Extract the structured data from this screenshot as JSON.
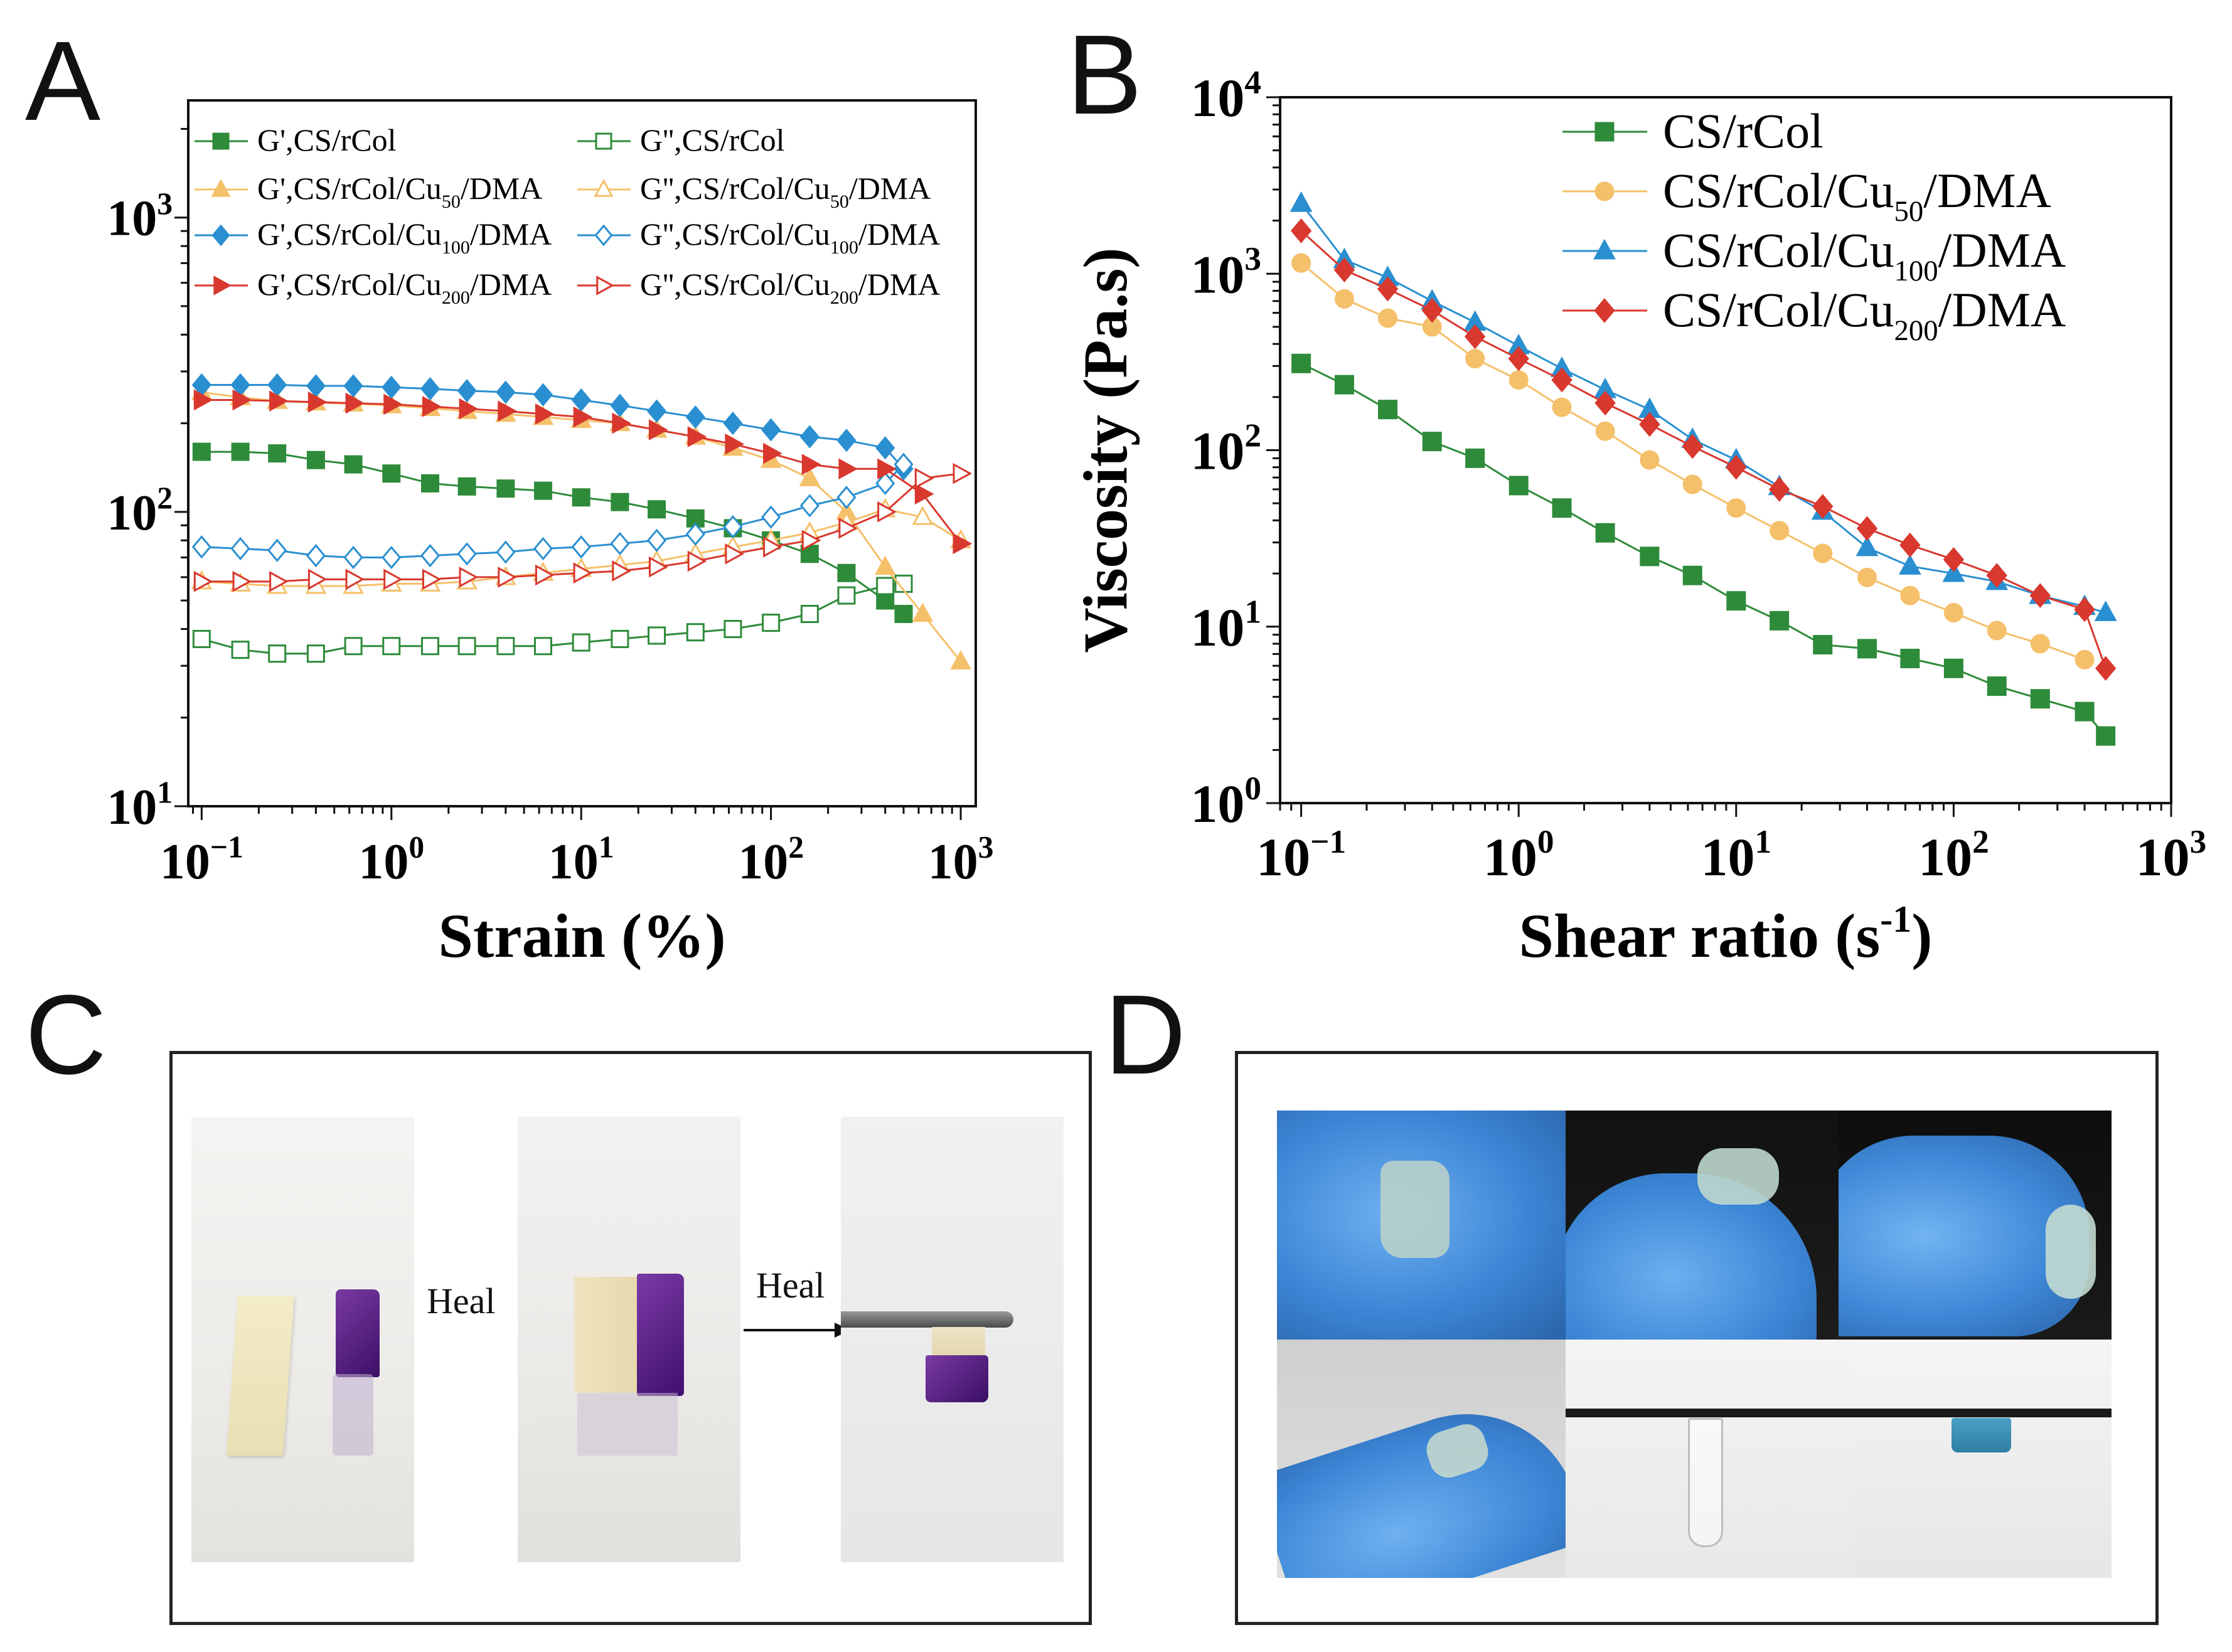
{
  "panels": {
    "A": {
      "letter": "A"
    },
    "B": {
      "letter": "B"
    },
    "C": {
      "letter": "C",
      "heal_label_1": "Heal",
      "heal_label_2": "Heal"
    },
    "D": {
      "letter": "D"
    }
  },
  "colors": {
    "green": "#2e8b3a",
    "yellow": "#f5c06a",
    "blue": "#2a8fd0",
    "red": "#d8382e"
  },
  "chart_data": [
    {
      "id": "A",
      "type": "line",
      "xlabel": "Strain (%)",
      "ylabel": "",
      "xscale": "log",
      "yscale": "log",
      "xlim": [
        0.085,
        1200
      ],
      "ylim": [
        10,
        2500
      ],
      "xticks": [
        {
          "base": "10",
          "exp": "−1"
        },
        {
          "base": "10",
          "exp": "0"
        },
        {
          "base": "10",
          "exp": "1"
        },
        {
          "base": "10",
          "exp": "2"
        },
        {
          "base": "10",
          "exp": "3"
        }
      ],
      "yticks": [
        {
          "base": "10",
          "exp": "1"
        },
        {
          "base": "10",
          "exp": "2"
        },
        {
          "base": "10",
          "exp": "3"
        }
      ],
      "legend_position": "top",
      "series": [
        {
          "name": "G',CS/rCol",
          "color": "green",
          "marker": "square",
          "filled": true,
          "x": [
            0.1,
            0.16,
            0.25,
            0.4,
            0.63,
            1,
            1.6,
            2.5,
            4,
            6.3,
            10,
            16,
            25,
            40,
            63,
            100,
            160,
            250,
            400,
            500
          ],
          "y": [
            160,
            160,
            158,
            150,
            145,
            135,
            125,
            122,
            120,
            118,
            112,
            108,
            102,
            95,
            88,
            80,
            72,
            62,
            50,
            45
          ]
        },
        {
          "name": "G'',CS/rCol",
          "color": "green",
          "marker": "square",
          "filled": false,
          "x": [
            0.1,
            0.16,
            0.25,
            0.4,
            0.63,
            1,
            1.6,
            2.5,
            4,
            6.3,
            10,
            16,
            25,
            40,
            63,
            100,
            160,
            250,
            400,
            500
          ],
          "y": [
            37,
            34,
            33,
            33,
            35,
            35,
            35,
            35,
            35,
            35,
            36,
            37,
            38,
            39,
            40,
            42,
            45,
            52,
            56,
            57
          ]
        },
        {
          "name": "G',CS/rCol/Cu50/DMA",
          "label_parts": [
            "G',CS/rCol/Cu",
            "50",
            "/DMA"
          ],
          "color": "yellow",
          "marker": "triangle-up",
          "filled": true,
          "x": [
            0.1,
            0.16,
            0.25,
            0.4,
            0.63,
            1,
            1.6,
            2.5,
            4,
            6.3,
            10,
            16,
            25,
            40,
            63,
            100,
            160,
            250,
            400,
            630,
            1000
          ],
          "y": [
            255,
            245,
            238,
            235,
            233,
            230,
            225,
            220,
            215,
            210,
            205,
            200,
            190,
            180,
            165,
            150,
            130,
            100,
            65,
            45,
            31
          ]
        },
        {
          "name": "G'',CS/rCol/Cu50/DMA",
          "label_parts": [
            "G'',CS/rCol/Cu",
            "50",
            "/DMA"
          ],
          "color": "yellow",
          "marker": "triangle-up",
          "filled": false,
          "x": [
            0.1,
            0.16,
            0.25,
            0.4,
            0.63,
            1,
            1.6,
            2.5,
            4,
            6.3,
            10,
            16,
            25,
            40,
            63,
            100,
            160,
            250,
            400,
            630,
            1000
          ],
          "y": [
            58,
            57,
            56,
            56,
            56,
            57,
            57,
            58,
            60,
            62,
            64,
            66,
            68,
            72,
            76,
            80,
            85,
            92,
            102,
            96,
            80
          ]
        },
        {
          "name": "G',CS/rCol/Cu100/DMA",
          "label_parts": [
            "G',CS/rCol/Cu",
            "100",
            "/DMA"
          ],
          "color": "blue",
          "marker": "diamond",
          "filled": true,
          "x": [
            0.1,
            0.16,
            0.25,
            0.4,
            0.63,
            1,
            1.6,
            2.5,
            4,
            6.3,
            10,
            16,
            25,
            40,
            63,
            100,
            160,
            250,
            400,
            500
          ],
          "y": [
            270,
            270,
            270,
            268,
            268,
            265,
            262,
            258,
            255,
            250,
            240,
            230,
            220,
            210,
            200,
            190,
            180,
            175,
            165,
            140
          ]
        },
        {
          "name": "G'',CS/rCol/Cu100/DMA",
          "label_parts": [
            "G'',CS/rCol/Cu",
            "100",
            "/DMA"
          ],
          "color": "blue",
          "marker": "diamond",
          "filled": false,
          "x": [
            0.1,
            0.16,
            0.25,
            0.4,
            0.63,
            1,
            1.6,
            2.5,
            4,
            6.3,
            10,
            16,
            25,
            40,
            63,
            100,
            160,
            250,
            400,
            500
          ],
          "y": [
            76,
            75,
            74,
            71,
            70,
            70,
            71,
            72,
            73,
            75,
            76,
            78,
            80,
            84,
            89,
            96,
            105,
            112,
            125,
            145
          ]
        },
        {
          "name": "G',CS/rCol/Cu200/DMA",
          "label_parts": [
            "G',CS/rCol/Cu",
            "200",
            "/DMA"
          ],
          "color": "red",
          "marker": "triangle-right",
          "filled": true,
          "x": [
            0.1,
            0.16,
            0.25,
            0.4,
            0.63,
            1,
            1.6,
            2.5,
            4,
            6.3,
            10,
            16,
            25,
            40,
            63,
            100,
            160,
            250,
            400,
            630,
            1000
          ],
          "y": [
            240,
            240,
            238,
            236,
            234,
            232,
            228,
            224,
            220,
            215,
            210,
            200,
            190,
            180,
            170,
            158,
            145,
            140,
            140,
            115,
            78
          ]
        },
        {
          "name": "G'',CS/rCol/Cu200/DMA",
          "label_parts": [
            "G'',CS/rCol/Cu",
            "200",
            "/DMA"
          ],
          "color": "red",
          "marker": "triangle-right",
          "filled": false,
          "x": [
            0.1,
            0.16,
            0.25,
            0.4,
            0.63,
            1,
            1.6,
            2.5,
            4,
            6.3,
            10,
            16,
            25,
            40,
            63,
            100,
            160,
            250,
            400,
            630,
            1000
          ],
          "y": [
            58,
            58,
            58,
            59,
            59,
            59,
            59,
            60,
            60,
            61,
            62,
            63,
            65,
            68,
            72,
            76,
            80,
            88,
            100,
            130,
            135
          ]
        }
      ]
    },
    {
      "id": "B",
      "type": "line",
      "xlabel_parts": [
        "Shear ratio (s",
        "-1",
        ")"
      ],
      "ylabel": "Viscosity  (Pa.s)",
      "xscale": "log",
      "yscale": "log",
      "xlim": [
        0.08,
        1000
      ],
      "ylim": [
        1,
        10000
      ],
      "xticks": [
        {
          "base": "10",
          "exp": "−1"
        },
        {
          "base": "10",
          "exp": "0"
        },
        {
          "base": "10",
          "exp": "1"
        },
        {
          "base": "10",
          "exp": "2"
        },
        {
          "base": "10",
          "exp": "3"
        }
      ],
      "yticks": [
        {
          "base": "10",
          "exp": "0"
        },
        {
          "base": "10",
          "exp": "1"
        },
        {
          "base": "10",
          "exp": "2"
        },
        {
          "base": "10",
          "exp": "3"
        },
        {
          "base": "10",
          "exp": "4"
        }
      ],
      "legend_position": "top-right",
      "series": [
        {
          "name": "CS/rCol",
          "label_parts": [
            "CS/rCol",
            "",
            ""
          ],
          "color": "green",
          "marker": "square",
          "x": [
            0.1,
            0.158,
            0.25,
            0.4,
            0.63,
            1,
            1.58,
            2.5,
            4,
            6.3,
            10,
            15.8,
            25,
            40,
            63,
            100,
            158,
            250,
            400,
            500
          ],
          "y": [
            310,
            235,
            170,
            112,
            90,
            63,
            47,
            34,
            25,
            19.5,
            14,
            10.8,
            7.9,
            7.5,
            6.6,
            5.8,
            4.6,
            3.9,
            3.3,
            2.4
          ]
        },
        {
          "name": "CS/rCol/Cu50/DMA",
          "label_parts": [
            "CS/rCol/Cu",
            "50",
            "/DMA"
          ],
          "color": "yellow",
          "marker": "circle",
          "x": [
            0.1,
            0.158,
            0.25,
            0.4,
            0.63,
            1,
            1.58,
            2.5,
            4,
            6.3,
            10,
            15.8,
            25,
            40,
            63,
            100,
            158,
            250,
            400
          ],
          "y": [
            1150,
            720,
            560,
            500,
            330,
            250,
            175,
            128,
            88,
            64,
            47,
            35,
            26,
            19,
            15,
            12,
            9.5,
            8,
            6.5
          ]
        },
        {
          "name": "CS/rCol/Cu100/DMA",
          "label_parts": [
            "CS/rCol/Cu",
            "100",
            "/DMA"
          ],
          "color": "blue",
          "marker": "triangle-up",
          "x": [
            0.1,
            0.158,
            0.25,
            0.4,
            0.63,
            1,
            1.58,
            2.5,
            4,
            6.3,
            10,
            15.8,
            25,
            40,
            63,
            100,
            158,
            250,
            400,
            500
          ],
          "y": [
            2500,
            1200,
            950,
            700,
            530,
            390,
            290,
            220,
            170,
            115,
            88,
            62,
            45,
            28,
            22,
            20,
            18,
            15,
            13,
            12
          ]
        },
        {
          "name": "CS/rCol/Cu200/DMA",
          "label_parts": [
            "CS/rCol/Cu",
            "200",
            "/DMA"
          ],
          "color": "red",
          "marker": "diamond",
          "x": [
            0.1,
            0.158,
            0.25,
            0.4,
            0.63,
            1,
            1.58,
            2.5,
            4,
            6.3,
            10,
            15.8,
            25,
            40,
            63,
            100,
            158,
            250,
            400,
            500
          ],
          "y": [
            1750,
            1050,
            820,
            620,
            440,
            330,
            250,
            185,
            140,
            105,
            80,
            60,
            48,
            36,
            29,
            24,
            19.5,
            15,
            12.5,
            5.8
          ]
        }
      ]
    }
  ]
}
